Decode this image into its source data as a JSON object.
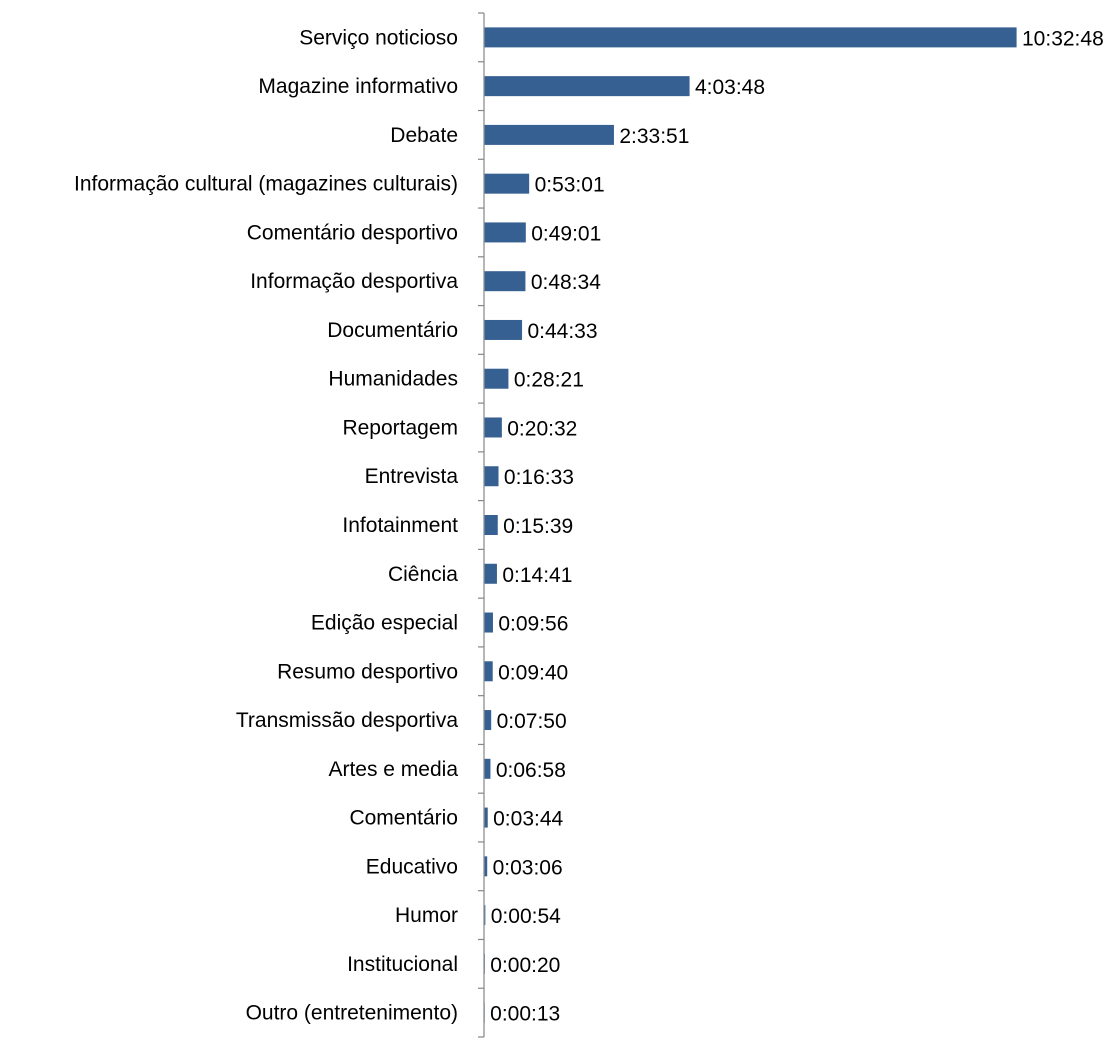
{
  "chart_data": {
    "type": "bar",
    "orientation": "horizontal",
    "title": "",
    "xlabel": "",
    "ylabel": "",
    "grid": false,
    "legend": "none",
    "bar_color": "#376092",
    "categories": [
      "Serviço noticioso",
      "Magazine informativo",
      "Debate",
      "Informação cultural (magazines culturais)",
      "Comentário desportivo",
      "Informação desportiva",
      "Documentário",
      "Humanidades",
      "Reportagem",
      "Entrevista",
      "Infotainment",
      "Ciência",
      "Edição especial",
      "Resumo desportivo",
      "Transmissão desportiva",
      "Artes e media",
      "Comentário",
      "Educativo",
      "Humor",
      "Institucional",
      "Outro (entretenimento)"
    ],
    "value_labels": [
      "10:32:48",
      "4:03:48",
      "2:33:51",
      "0:53:01",
      "0:49:01",
      "0:48:34",
      "0:44:33",
      "0:28:21",
      "0:20:32",
      "0:16:33",
      "0:15:39",
      "0:14:41",
      "0:09:56",
      "0:09:40",
      "0:07:50",
      "0:06:58",
      "0:03:44",
      "0:03:06",
      "0:00:54",
      "0:00:20",
      "0:00:13"
    ],
    "values_seconds": [
      37968,
      14628,
      9231,
      3181,
      2941,
      2914,
      2673,
      1701,
      1232,
      993,
      939,
      881,
      596,
      580,
      470,
      418,
      224,
      186,
      54,
      20,
      13
    ]
  }
}
